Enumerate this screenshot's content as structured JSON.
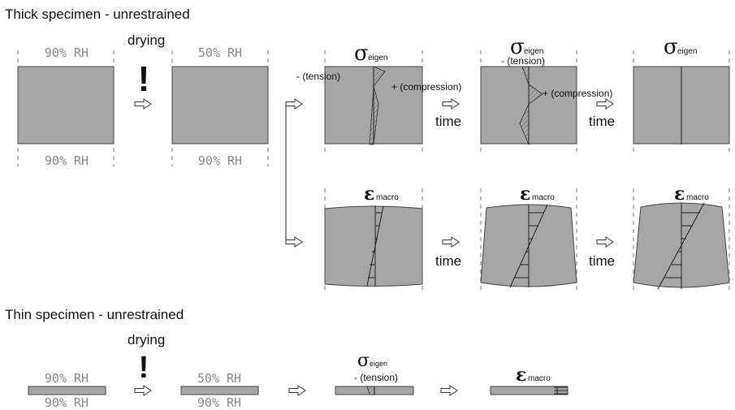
{
  "thick": {
    "heading": "Thick specimen - unrestrained",
    "drying": "drying",
    "exclaim": "!",
    "rh_initial_top": "90% RH",
    "rh_initial_bottom": "90% RH",
    "rh_dried_top": "50% RH",
    "rh_dried_bottom": "90% RH",
    "tension_label": "- (tension)",
    "compression_label": "+ (compression)",
    "time_label": "time"
  },
  "thin": {
    "heading": "Thin specimen - unrestrained",
    "drying": "drying",
    "exclaim": "!",
    "rh_initial_top": "90% RH",
    "rh_initial_bottom": "90% RH",
    "rh_dried_top": "50% RH",
    "rh_dried_bottom": "90% RH",
    "tension_label": "- (tension)"
  },
  "symbols": {
    "sigma": "σ",
    "eigen_subscript": "eigen",
    "epsilon": "ε",
    "macro_subscript": "macro"
  },
  "colors": {
    "specimen_fill": "#a6a6a6",
    "outline": "#444444",
    "rh_text": "#888888"
  }
}
